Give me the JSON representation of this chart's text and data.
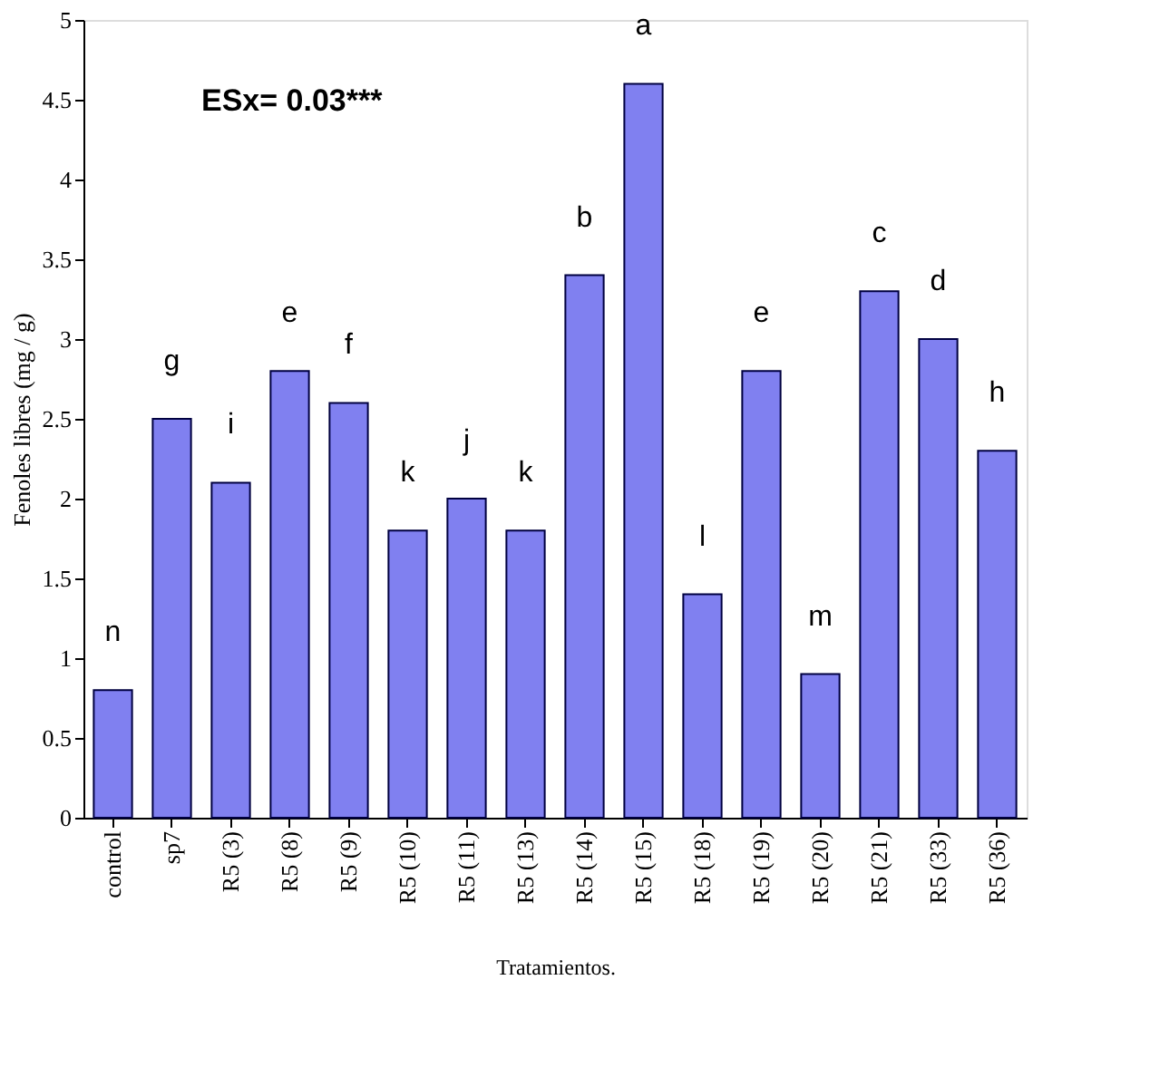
{
  "chart_data": {
    "type": "bar",
    "xlabel": "Tratamientos.",
    "ylabel": "Fenoles libres (mg / g)",
    "categories": [
      "control",
      "sp7",
      "R5 (3)",
      "R5 (8)",
      "R5 (9)",
      "R5 (10)",
      "R5 (11)",
      "R5 (13)",
      "R5 (14)",
      "R5 (15)",
      "R5 (18)",
      "R5 (19)",
      "R5 (20)",
      "R5 (21)",
      "R5 (33)",
      "R5 (36)"
    ],
    "values": [
      0.8,
      2.5,
      2.1,
      2.8,
      2.6,
      1.8,
      2.0,
      1.8,
      3.4,
      4.6,
      1.4,
      2.8,
      0.9,
      3.3,
      3.0,
      2.3
    ],
    "color": "#8080f0",
    "ylim": [
      0,
      5
    ],
    "yticks": [
      0,
      {
        "value": 0.5,
        "label": "0.5"
      },
      1,
      1.5,
      2,
      2.5,
      3,
      3.5,
      4,
      4.5,
      5
    ],
    "grid": false,
    "annotations": [
      "ESx= 0.03***",
      {
        "text": "n",
        "x": "control",
        "y": 0.8
      },
      {
        "text": "g",
        "x": "sp7",
        "y": 2.5
      },
      {
        "text": "i",
        "x": "R5 (3)",
        "y": 2.1
      },
      {
        "text": "e",
        "x": "R5 (8)",
        "y": 2.8
      },
      {
        "text": "f",
        "x": "R5 (9)",
        "y": 2.6
      },
      {
        "text": "k",
        "x": "R5 (10)",
        "y": 1.8
      },
      {
        "text": "j",
        "x": "R5 (11)",
        "y": 2.0
      },
      {
        "text": "k",
        "x": "R5 (13)",
        "y": 1.8
      },
      {
        "text": "b",
        "x": "R5 (14)",
        "y": 3.4
      },
      {
        "text": "a",
        "x": "R5 (15)",
        "y": 4.6
      },
      {
        "text": "l",
        "x": "R5 (18)",
        "y": 1.4
      },
      {
        "text": "e",
        "x": "R5 (19)",
        "y": 2.8
      },
      {
        "text": "m",
        "x": "R5 (20)",
        "y": 0.9
      },
      {
        "text": "c",
        "x": "R5 (21)",
        "y": 3.3
      },
      {
        "text": "d",
        "x": "R5 (33)",
        "y": 3.0
      },
      {
        "text": "h",
        "x": "R5 (36)",
        "y": 2.3
      }
    ]
  }
}
